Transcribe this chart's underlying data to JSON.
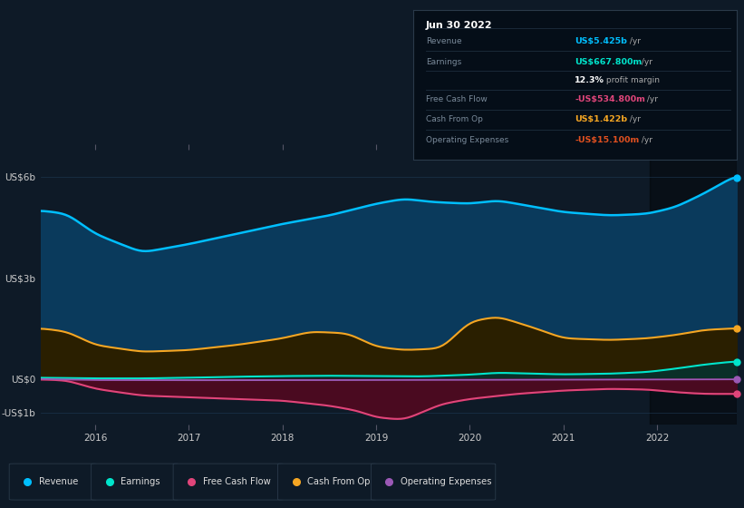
{
  "bg_color": "#0e1a27",
  "plot_bg_color": "#0e1a27",
  "ylim": [
    -1350000000.0,
    6800000000.0
  ],
  "xlim_start": 2015.42,
  "xlim_end": 2022.85,
  "revenue_color": "#00bfff",
  "earnings_color": "#00e5cc",
  "fcf_color": "#e0457a",
  "cashfromop_color": "#f5a623",
  "opex_color": "#9b59b6",
  "revenue_fill": "#0a3a5c",
  "cashfromop_fill": "#2a1f00",
  "earnings_fill": "#0a2f28",
  "fcf_fill": "#4a0a20",
  "shaded_start": 2021.92,
  "shaded_end": 2022.85,
  "grid_color": "#1e3a55",
  "ytick_vals": [
    -1000000000.0,
    0,
    3000000000.0,
    6000000000.0
  ],
  "ytick_labels": [
    "-US$1b",
    "US$0",
    "US$3b",
    "US$6b"
  ],
  "xtick_vals": [
    2016,
    2017,
    2018,
    2019,
    2020,
    2021,
    2022
  ],
  "xtick_labels": [
    "2016",
    "2017",
    "2018",
    "2019",
    "2020",
    "2021",
    "2022"
  ],
  "legend_items": [
    "Revenue",
    "Earnings",
    "Free Cash Flow",
    "Cash From Op",
    "Operating Expenses"
  ],
  "legend_colors": [
    "#00bfff",
    "#00e5cc",
    "#e0457a",
    "#f5a623",
    "#9b59b6"
  ],
  "info_box": {
    "date": "Jun 30 2022",
    "rows": [
      {
        "label": "Revenue",
        "value": "US$5.425b",
        "suffix": " /yr",
        "vcolor": "#00bfff"
      },
      {
        "label": "Earnings",
        "value": "US$667.800m",
        "suffix": " /yr",
        "vcolor": "#00e5cc"
      },
      {
        "label": "",
        "value": "12.3%",
        "suffix": " profit margin",
        "vcolor": "#ffffff"
      },
      {
        "label": "Free Cash Flow",
        "value": "-US$534.800m",
        "suffix": " /yr",
        "vcolor": "#e0457a"
      },
      {
        "label": "Cash From Op",
        "value": "US$1.422b",
        "suffix": " /yr",
        "vcolor": "#f5a623"
      },
      {
        "label": "Operating Expenses",
        "value": "-US$15.100m",
        "suffix": " /yr",
        "vcolor": "#e05020"
      }
    ]
  }
}
